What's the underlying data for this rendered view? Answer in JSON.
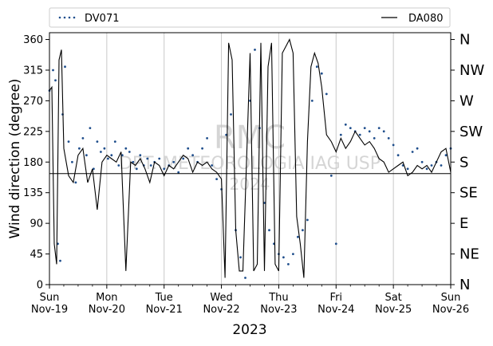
{
  "chart_data": {
    "type": "line",
    "title": "",
    "xlabel": "2023",
    "ylabel": "Wind direction (degree)",
    "ylim": [
      0,
      370
    ],
    "xlim": [
      "2023-11-19",
      "2023-11-26"
    ],
    "grid": {
      "x": true,
      "y": false
    },
    "legend": {
      "placement": "top",
      "entries": [
        "DV071",
        "DA080"
      ]
    },
    "x_ticks": [
      {
        "date": "2023-11-19",
        "day": "Sun",
        "label": "Nov-19"
      },
      {
        "date": "2023-11-20",
        "day": "Mon",
        "label": "Nov-20"
      },
      {
        "date": "2023-11-21",
        "day": "Tue",
        "label": "Nov-21"
      },
      {
        "date": "2023-11-22",
        "day": "Wed",
        "label": "Nov-22"
      },
      {
        "date": "2023-11-23",
        "day": "Thu",
        "label": "Nov-23"
      },
      {
        "date": "2023-11-24",
        "day": "Fri",
        "label": "Nov-24"
      },
      {
        "date": "2023-11-25",
        "day": "Sat",
        "label": "Nov-25"
      },
      {
        "date": "2023-11-26",
        "day": "Sun",
        "label": "Nov-26"
      }
    ],
    "y_ticks": [
      "0",
      "45",
      "90",
      "135",
      "180",
      "225",
      "270",
      "315",
      "360"
    ],
    "compass_labels": [
      {
        "label": "N",
        "value": 0
      },
      {
        "label": "NE",
        "value": 45
      },
      {
        "label": "E",
        "value": 90
      },
      {
        "label": "SE",
        "value": 135
      },
      {
        "label": "S",
        "value": 180
      },
      {
        "label": "SW",
        "value": 225
      },
      {
        "label": "W",
        "value": 270
      },
      {
        "label": "NW",
        "value": 315
      },
      {
        "label": "N",
        "value": 360
      }
    ],
    "reference_line": {
      "value": 163
    },
    "series": [
      {
        "name": "DV071",
        "style": "dotted",
        "color": "#1f4e8c",
        "x": [
          "2023-11-19 00:00",
          "2023-11-19 01:30",
          "2023-11-19 02:30",
          "2023-11-19 03:30",
          "2023-11-19 04:30",
          "2023-11-19 05:30",
          "2023-11-19 06:30",
          "2023-11-19 08:00",
          "2023-11-19 09:30",
          "2023-11-19 11:00",
          "2023-11-19 12:30",
          "2023-11-19 14:00",
          "2023-11-19 15:30",
          "2023-11-19 17:00",
          "2023-11-19 18:30",
          "2023-11-19 20:00",
          "2023-11-19 21:30",
          "2023-11-19 23:00",
          "2023-11-20 00:30",
          "2023-11-20 02:00",
          "2023-11-20 03:30",
          "2023-11-20 05:00",
          "2023-11-20 06:30",
          "2023-11-20 08:00",
          "2023-11-20 09:30",
          "2023-11-20 11:00",
          "2023-11-20 12:30",
          "2023-11-20 14:00",
          "2023-11-20 15:30",
          "2023-11-20 17:00",
          "2023-11-20 18:30",
          "2023-11-20 20:00",
          "2023-11-20 22:00",
          "2023-11-21 00:00",
          "2023-11-21 02:00",
          "2023-11-21 04:00",
          "2023-11-21 06:00",
          "2023-11-21 08:00",
          "2023-11-21 10:00",
          "2023-11-21 12:00",
          "2023-11-21 14:00",
          "2023-11-21 16:00",
          "2023-11-21 18:00",
          "2023-11-21 20:00",
          "2023-11-21 22:00",
          "2023-11-22 00:00",
          "2023-11-22 02:00",
          "2023-11-22 04:00",
          "2023-11-22 06:00",
          "2023-11-22 08:00",
          "2023-11-22 10:00",
          "2023-11-22 12:00",
          "2023-11-22 14:00",
          "2023-11-22 16:00",
          "2023-11-22 18:00",
          "2023-11-22 20:00",
          "2023-11-22 22:00",
          "2023-11-23 00:00",
          "2023-11-23 02:00",
          "2023-11-23 04:00",
          "2023-11-23 06:00",
          "2023-11-23 08:00",
          "2023-11-23 10:00",
          "2023-11-23 12:00",
          "2023-11-23 14:00",
          "2023-11-23 16:00",
          "2023-11-23 18:00",
          "2023-11-23 20:00",
          "2023-11-23 22:00",
          "2023-11-24 00:00",
          "2023-11-24 02:00",
          "2023-11-24 04:00",
          "2023-11-24 06:00",
          "2023-11-24 08:00",
          "2023-11-24 10:00",
          "2023-11-24 12:00",
          "2023-11-24 14:00",
          "2023-11-24 16:00",
          "2023-11-24 18:00",
          "2023-11-24 20:00",
          "2023-11-24 22:00",
          "2023-11-25 00:00",
          "2023-11-25 02:00",
          "2023-11-25 04:00",
          "2023-11-25 06:00",
          "2023-11-25 08:00",
          "2023-11-25 10:00",
          "2023-11-25 12:00",
          "2023-11-25 14:00",
          "2023-11-25 16:00",
          "2023-11-25 18:00",
          "2023-11-25 20:00",
          "2023-11-25 22:00",
          "2023-11-26 00:00"
        ],
        "values": [
          285,
          315,
          300,
          60,
          35,
          250,
          320,
          210,
          180,
          150,
          200,
          215,
          190,
          230,
          170,
          210,
          195,
          200,
          185,
          190,
          210,
          175,
          190,
          200,
          195,
          180,
          170,
          190,
          175,
          185,
          175,
          180,
          185,
          170,
          175,
          180,
          165,
          185,
          200,
          190,
          180,
          200,
          215,
          175,
          155,
          140,
          220,
          250,
          80,
          40,
          10,
          270,
          345,
          230,
          120,
          80,
          60,
          45,
          40,
          30,
          45,
          70,
          80,
          95,
          270,
          320,
          310,
          280,
          160,
          60,
          220,
          235,
          230,
          225,
          220,
          230,
          225,
          215,
          230,
          225,
          215,
          205,
          190,
          175,
          170,
          195,
          200,
          180,
          170,
          175,
          180,
          175,
          190,
          200
        ]
      },
      {
        "name": "DA080",
        "style": "solid",
        "color": "#000000",
        "x": [
          "2023-11-19 00:00",
          "2023-11-19 01:00",
          "2023-11-19 02:00",
          "2023-11-19 03:00",
          "2023-11-19 04:00",
          "2023-11-19 05:00",
          "2023-11-19 06:00",
          "2023-11-19 08:00",
          "2023-11-19 10:00",
          "2023-11-19 12:00",
          "2023-11-19 14:00",
          "2023-11-19 16:00",
          "2023-11-19 18:00",
          "2023-11-19 20:00",
          "2023-11-19 22:00",
          "2023-11-20 00:00",
          "2023-11-20 02:00",
          "2023-11-20 04:00",
          "2023-11-20 06:00",
          "2023-11-20 08:00",
          "2023-11-20 10:00",
          "2023-11-20 12:00",
          "2023-11-20 14:00",
          "2023-11-20 16:00",
          "2023-11-20 18:00",
          "2023-11-20 20:00",
          "2023-11-20 22:00",
          "2023-11-21 00:00",
          "2023-11-21 02:00",
          "2023-11-21 04:00",
          "2023-11-21 06:00",
          "2023-11-21 08:00",
          "2023-11-21 10:00",
          "2023-11-21 12:00",
          "2023-11-21 14:00",
          "2023-11-21 16:00",
          "2023-11-21 18:00",
          "2023-11-21 20:00",
          "2023-11-21 22:00",
          "2023-11-22 00:00",
          "2023-11-22 01:30",
          "2023-11-22 03:00",
          "2023-11-22 04:30",
          "2023-11-22 06:00",
          "2023-11-22 07:30",
          "2023-11-22 09:00",
          "2023-11-22 10:30",
          "2023-11-22 12:00",
          "2023-11-22 13:30",
          "2023-11-22 15:00",
          "2023-11-22 16:30",
          "2023-11-22 18:00",
          "2023-11-22 19:30",
          "2023-11-22 21:00",
          "2023-11-22 22:30",
          "2023-11-23 00:00",
          "2023-11-23 01:30",
          "2023-11-23 03:00",
          "2023-11-23 04:30",
          "2023-11-23 06:00",
          "2023-11-23 07:30",
          "2023-11-23 09:00",
          "2023-11-23 10:30",
          "2023-11-23 12:00",
          "2023-11-23 13:30",
          "2023-11-23 15:00",
          "2023-11-23 16:30",
          "2023-11-23 18:00",
          "2023-11-23 20:00",
          "2023-11-23 22:00",
          "2023-11-24 00:00",
          "2023-11-24 02:00",
          "2023-11-24 04:00",
          "2023-11-24 06:00",
          "2023-11-24 08:00",
          "2023-11-24 10:00",
          "2023-11-24 12:00",
          "2023-11-24 14:00",
          "2023-11-24 16:00",
          "2023-11-24 18:00",
          "2023-11-24 20:00",
          "2023-11-24 22:00",
          "2023-11-25 00:00",
          "2023-11-25 02:00",
          "2023-11-25 04:00",
          "2023-11-25 06:00",
          "2023-11-25 08:00",
          "2023-11-25 10:00",
          "2023-11-25 12:00",
          "2023-11-25 14:00",
          "2023-11-25 16:00",
          "2023-11-25 18:00",
          "2023-11-25 20:00",
          "2023-11-25 22:00",
          "2023-11-26 00:00"
        ],
        "values": [
          285,
          290,
          60,
          30,
          330,
          345,
          200,
          160,
          150,
          190,
          200,
          150,
          170,
          110,
          180,
          190,
          185,
          180,
          195,
          20,
          180,
          175,
          185,
          170,
          150,
          180,
          175,
          160,
          175,
          170,
          180,
          190,
          185,
          165,
          180,
          175,
          180,
          170,
          165,
          155,
          10,
          355,
          330,
          80,
          20,
          20,
          180,
          340,
          20,
          30,
          355,
          20,
          320,
          355,
          30,
          20,
          340,
          350,
          360,
          340,
          100,
          60,
          10,
          210,
          320,
          340,
          325,
          290,
          220,
          210,
          195,
          215,
          200,
          210,
          225,
          215,
          205,
          210,
          200,
          185,
          180,
          165,
          170,
          175,
          180,
          160,
          165,
          175,
          170,
          175,
          165,
          180,
          195,
          200,
          165
        ]
      }
    ]
  },
  "watermark": {
    "line1": "RMC",
    "line2": "DPT. METEOROLOGIA IAG USP",
    "line3": "2024"
  }
}
